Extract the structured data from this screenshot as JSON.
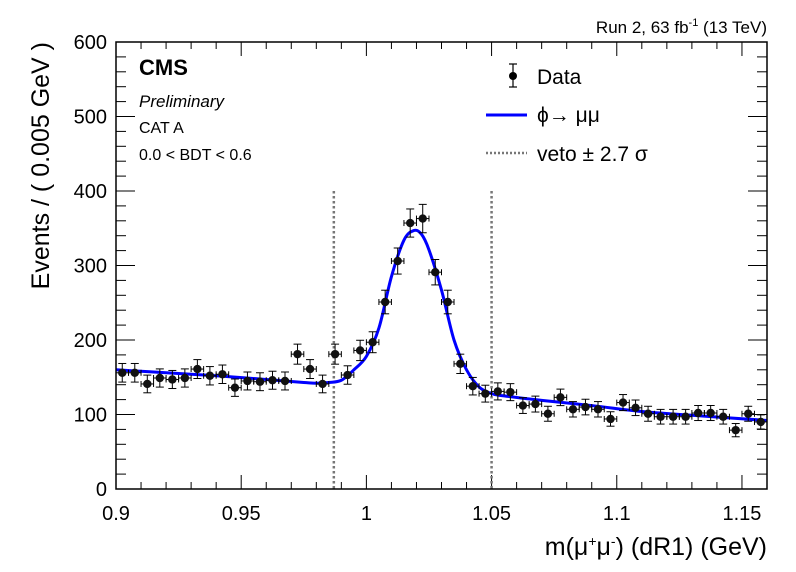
{
  "chart_data": {
    "type": "scatter",
    "header_right": "Run 2, 63 fb",
    "header_right_sup": "-1",
    "header_right_tail": " (13 TeV)",
    "experiment": "CMS",
    "status": "Preliminary",
    "category": "CAT A",
    "selection": "0.0 < BDT < 0.6",
    "xlabel_parts": [
      "m(μ",
      "+",
      "μ",
      "-",
      ") (dR1) (GeV)"
    ],
    "ylabel": "Events / ( 0.005 GeV )",
    "xlim": [
      0.9,
      1.16
    ],
    "ylim": [
      0,
      600
    ],
    "xticks": [
      0.9,
      0.95,
      1.0,
      1.05,
      1.1,
      1.15
    ],
    "xtick_labels": [
      "0.9",
      "0.95",
      "1",
      "1.05",
      "1.1",
      "1.15"
    ],
    "yticks": [
      0,
      100,
      200,
      300,
      400,
      500,
      600
    ],
    "ytick_labels": [
      "0",
      "100",
      "200",
      "300",
      "400",
      "500",
      "600"
    ],
    "grid": false,
    "legend_position": "top-right",
    "legend": [
      {
        "label": "Data",
        "style": "marker-errorbar",
        "color": "#000000"
      },
      {
        "label": "ϕ→ μμ",
        "style": "line",
        "color": "#0000ff"
      },
      {
        "label": "veto ± 2.7 σ",
        "style": "dotted",
        "color": "#777777"
      }
    ],
    "bin_width": 0.005,
    "series": [
      {
        "name": "Data",
        "x": [
          0.9025,
          0.9075,
          0.9125,
          0.9175,
          0.9225,
          0.9275,
          0.9325,
          0.9375,
          0.9425,
          0.9475,
          0.9525,
          0.9575,
          0.9625,
          0.9675,
          0.9725,
          0.9775,
          0.9825,
          0.9875,
          0.9925,
          0.9975,
          1.0025,
          1.0075,
          1.0125,
          1.0175,
          1.0225,
          1.0275,
          1.0325,
          1.0375,
          1.0425,
          1.0475,
          1.0525,
          1.0575,
          1.0625,
          1.0675,
          1.0725,
          1.0775,
          1.0825,
          1.0875,
          1.0925,
          1.0975,
          1.1025,
          1.1075,
          1.1125,
          1.1175,
          1.1225,
          1.1275,
          1.1325,
          1.1375,
          1.1425,
          1.1475,
          1.1525,
          1.1575
        ],
        "y": [
          156,
          156,
          141,
          149,
          147,
          149,
          161,
          152,
          154,
          136,
          145,
          144,
          146,
          145,
          181,
          161,
          141,
          181,
          153,
          186,
          197,
          251,
          306,
          357,
          363,
          291,
          251,
          168,
          138,
          128,
          131,
          130,
          112,
          114,
          101,
          123,
          107,
          110,
          107,
          94,
          116,
          109,
          101,
          97,
          97,
          97,
          102,
          102,
          97,
          79,
          101,
          90
        ]
      },
      {
        "name": "ϕ→ μμ",
        "x": [
          0.9,
          0.92,
          0.94,
          0.96,
          0.975,
          0.98,
          0.985,
          0.99,
          0.995,
          1.0,
          1.005,
          1.01,
          1.015,
          1.019,
          1.022,
          1.025,
          1.03,
          1.035,
          1.04,
          1.045,
          1.05,
          1.055,
          1.07,
          1.09,
          1.11,
          1.13,
          1.16
        ],
        "y": [
          160,
          156,
          152,
          147,
          143,
          142,
          143,
          146,
          160,
          178,
          216,
          285,
          334,
          347,
          342,
          321,
          267,
          200,
          160,
          137,
          128,
          125,
          119,
          112,
          104,
          99,
          92
        ]
      }
    ],
    "veto_lines": [
      0.987,
      1.05
    ]
  }
}
